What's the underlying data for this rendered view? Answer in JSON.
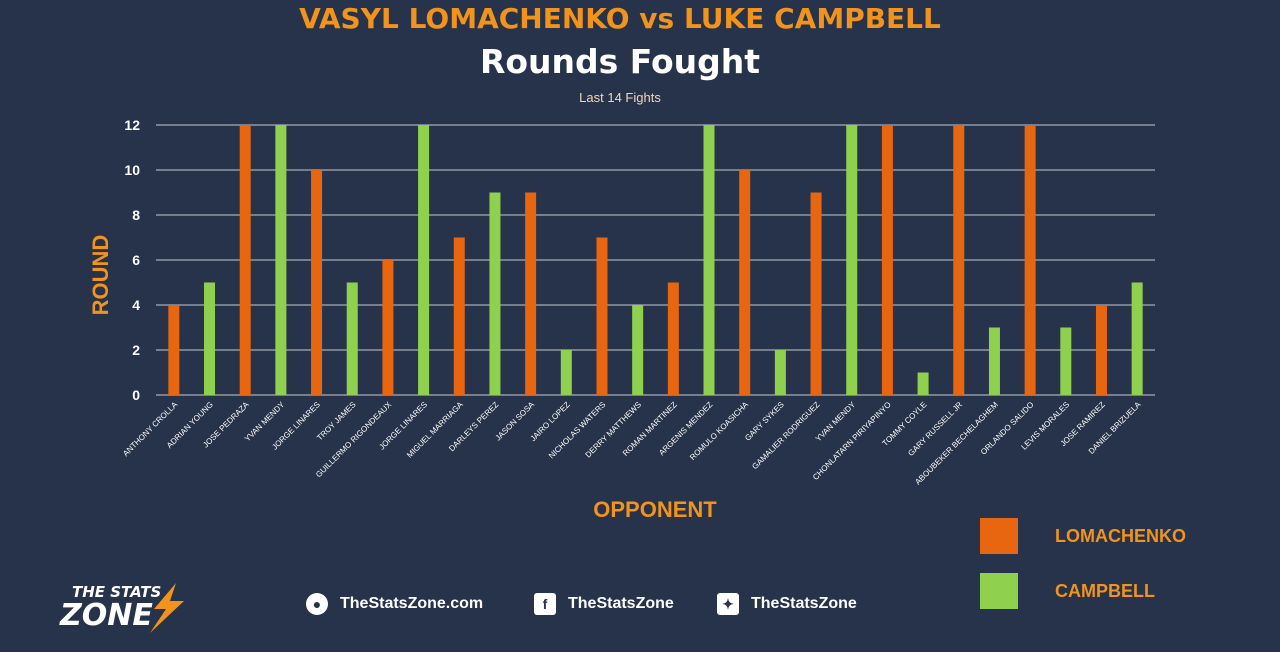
{
  "header": {
    "title": "VASYL LOMACHENKO vs LUKE CAMPBELL",
    "subtitle": "Rounds Fought",
    "note": "Last 14 Fights"
  },
  "chart_data": {
    "type": "bar",
    "ylabel": "ROUND",
    "xlabel": "OPPONENT",
    "ylim": [
      0,
      12
    ],
    "yticks": [
      0,
      2,
      4,
      6,
      8,
      10,
      12
    ],
    "grid": true,
    "legend_position": "bottom-right",
    "categories": [
      "ANTHONY CROLLA",
      "ADRIAN YOUNG",
      "JOSE PEDRAZA",
      "YVAN MENDY",
      "JORGE LINARES",
      "TROY JAMES",
      "GUILLERMO RIGONDEAUX",
      "JORGE LINARES",
      "MIGUEL MARRIAGA",
      "DARLEYS PEREZ",
      "JASON SOSA",
      "JAIRO LOPEZ",
      "NICHOLAS WATERS",
      "DERRY MATTHEWS",
      "ROMAN MARTINEZ",
      "ARGENIS MENDEZ",
      "ROMULO KOASICHA",
      "GARY SYKES",
      "GAMALIER RODRIGUEZ",
      "YVAN MENDY",
      "CHONLATARN PIRIYAPINYO",
      "TOMMY COYLE",
      "GARY RUSSELL JR",
      "ABOUBEKER BECHELAGHEM",
      "ORLANDO SALIDO",
      "LEVIS MORALES",
      "JOSE RAMIREZ",
      "DANIEL BRIZUELA"
    ],
    "values": [
      4,
      5,
      12,
      12,
      10,
      5,
      6,
      12,
      7,
      9,
      9,
      2,
      7,
      4,
      5,
      12,
      10,
      2,
      9,
      12,
      12,
      1,
      12,
      3,
      12,
      3,
      4,
      5
    ],
    "fighter": [
      "L",
      "C",
      "L",
      "C",
      "L",
      "C",
      "L",
      "C",
      "L",
      "C",
      "L",
      "C",
      "L",
      "C",
      "L",
      "C",
      "L",
      "C",
      "L",
      "C",
      "L",
      "C",
      "L",
      "C",
      "L",
      "C",
      "L",
      "C"
    ],
    "series": [
      {
        "name": "LOMACHENKO",
        "key": "L",
        "color": "#e8660f"
      },
      {
        "name": "CAMPBELL",
        "key": "C",
        "color": "#8fd14f"
      }
    ],
    "colors": {
      "grid": "#c7cbd3",
      "tick": "#ffffff",
      "axis_title": "#f2931c"
    }
  },
  "legend": {
    "items": [
      {
        "label": "LOMACHENKO",
        "color": "#e8660f"
      },
      {
        "label": "CAMPBELL",
        "color": "#8fd14f"
      }
    ]
  },
  "footer": {
    "logo_top": "THE STATS",
    "logo_bottom": "ZONE",
    "website": "TheStatsZone.com",
    "facebook": "TheStatsZone",
    "twitter": "TheStatsZone",
    "website_icon": "globe-icon",
    "facebook_icon": "facebook-icon",
    "twitter_icon": "twitter-icon"
  }
}
